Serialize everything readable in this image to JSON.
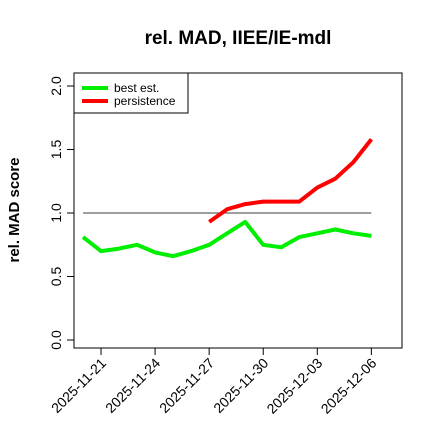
{
  "chart_data": {
    "type": "line",
    "title": "rel. MAD, IIEE/IE-mdl",
    "xlabel": "",
    "ylabel": "rel. MAD score",
    "ylim": [
      0,
      2.0
    ],
    "yticks": [
      "0.0",
      "0.5",
      "1.0",
      "1.5",
      "2.0"
    ],
    "xticks": [
      "2025-11-21",
      "2025-11-24",
      "2025-11-27",
      "2025-11-30",
      "2025-12-03",
      "2025-12-06"
    ],
    "xticks_num": [
      0,
      3,
      6,
      9,
      12,
      15
    ],
    "xlim": [
      -1.5,
      16.7
    ],
    "grid": false,
    "legend": "top-left",
    "reference_line": {
      "y": 1.0,
      "x_from": -1,
      "x_to": 15,
      "color": "#666666"
    },
    "series": [
      {
        "name": "best est.",
        "color": "#00ee00",
        "x": [
          -1,
          0,
          1,
          2,
          3,
          4,
          5,
          6,
          7,
          8,
          9,
          10,
          11,
          12,
          13,
          14,
          15
        ],
        "y": [
          0.81,
          0.7,
          0.72,
          0.75,
          0.69,
          0.66,
          0.7,
          0.75,
          0.84,
          0.93,
          0.75,
          0.73,
          0.81,
          0.84,
          0.87,
          0.84,
          0.82
        ]
      },
      {
        "name": "persistence",
        "color": "#ff0000",
        "x": [
          6,
          7,
          8,
          9,
          10,
          11,
          12,
          13,
          14,
          15
        ],
        "y": [
          0.93,
          1.03,
          1.07,
          1.09,
          1.09,
          1.09,
          1.2,
          1.27,
          1.4,
          1.58
        ]
      }
    ]
  }
}
